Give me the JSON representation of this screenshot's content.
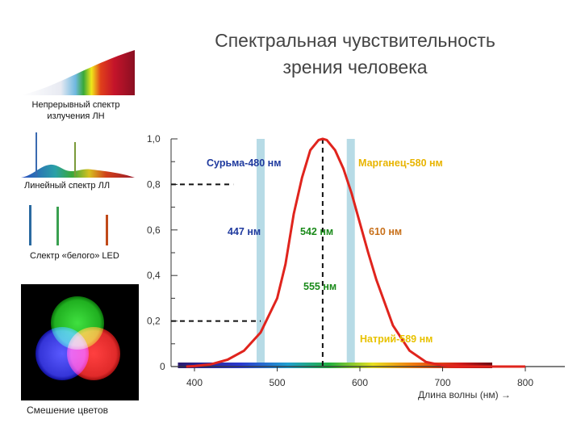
{
  "title_line1": "Спектральная чувствительность",
  "title_line2": "зрения человека",
  "panels": {
    "continuous_label_line1": "Непрерывный спектр",
    "continuous_label_line2": "излучения ЛН",
    "linear_label": "Линейный спектр ЛЛ",
    "led_label": "Слектр «белого» LED",
    "mixing_label": "Смешение цветов"
  },
  "colors": {
    "curve": "#e0241d",
    "band": "#b7dbe6",
    "antimony": "#1f3a9e",
    "manganese": "#e8b400",
    "green": "#1a8a1a",
    "orange": "#c8701a",
    "sodium": "#e8c200"
  },
  "chart_data": {
    "type": "line",
    "title": "Спектральная чувствительность зрения человека",
    "xlabel": "Длина волны (нм) →",
    "ylabel": "",
    "xlim": [
      380,
      800
    ],
    "ylim": [
      0,
      1.0
    ],
    "x_ticks": [
      "400",
      "500",
      "600",
      "700",
      "800"
    ],
    "y_ticks": [
      "0",
      "0,2",
      "0,4",
      "0,6",
      "0,8",
      "1,0"
    ],
    "series": [
      {
        "x": [
          390,
          400,
          420,
          440,
          460,
          480,
          500,
          510,
          520,
          530,
          540,
          550,
          555,
          560,
          570,
          580,
          590,
          600,
          610,
          620,
          640,
          660,
          680,
          700,
          720,
          750,
          780,
          800
        ],
        "y": [
          0.0,
          0.002,
          0.01,
          0.03,
          0.07,
          0.15,
          0.3,
          0.45,
          0.67,
          0.83,
          0.95,
          0.995,
          1.0,
          0.995,
          0.95,
          0.87,
          0.76,
          0.63,
          0.5,
          0.38,
          0.18,
          0.07,
          0.02,
          0.005,
          0.001,
          0.0,
          0.0,
          0.0
        ]
      }
    ],
    "bands_nm": [
      480,
      589
    ],
    "marker_line_nm": 555,
    "dashed_levels": [
      {
        "x": 447,
        "y": 0.8
      },
      {
        "x": 480,
        "y": 0.2
      }
    ],
    "annotations": {
      "antimony": "Сурьма-480 нм",
      "manganese": "Марганец-580 нм",
      "nm447": "447 нм",
      "nm542": "542 нм",
      "nm610": "610 нм",
      "nm555": "555 нм",
      "sodium": "Натрий-589 нм"
    }
  }
}
